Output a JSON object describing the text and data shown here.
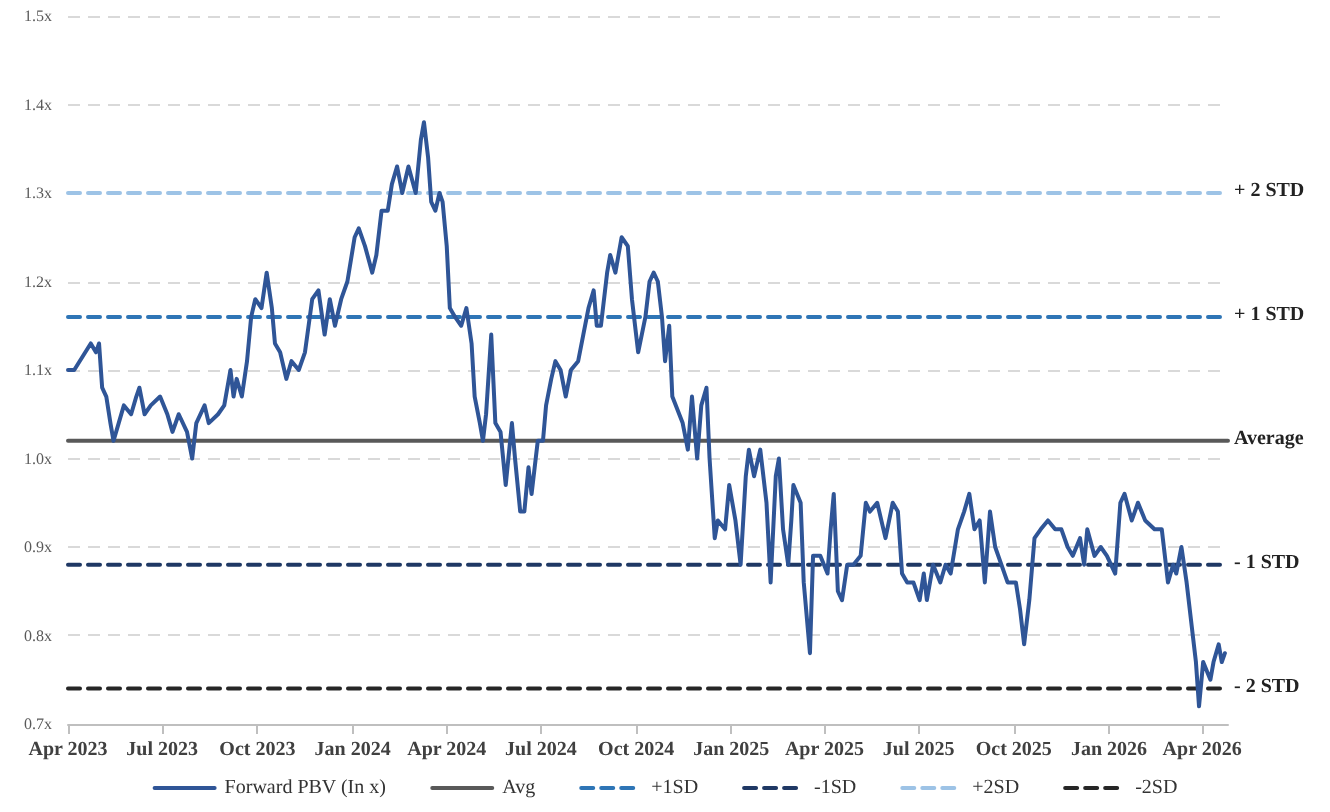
{
  "chart_data": {
    "type": "line",
    "xlim": [
      "2023-04-01",
      "2026-04-26"
    ],
    "xticks": [
      {
        "value": "2023-04-01",
        "label": "Apr 2023"
      },
      {
        "value": "2023-07-01",
        "label": "Jul 2023"
      },
      {
        "value": "2023-10-01",
        "label": "Oct 2023"
      },
      {
        "value": "2024-01-01",
        "label": "Jan 2024"
      },
      {
        "value": "2024-04-01",
        "label": "Apr 2024"
      },
      {
        "value": "2024-07-01",
        "label": "Jul 2024"
      },
      {
        "value": "2024-10-01",
        "label": "Oct 2024"
      },
      {
        "value": "2025-01-01",
        "label": "Jan 2025"
      },
      {
        "value": "2025-04-01",
        "label": "Apr 2025"
      },
      {
        "value": "2025-07-01",
        "label": "Jul 2025"
      },
      {
        "value": "2025-10-01",
        "label": "Oct 2025"
      },
      {
        "value": "2026-01-01",
        "label": "Jan 2026"
      },
      {
        "value": "2026-04-01",
        "label": "Apr 2026"
      }
    ],
    "ylim": [
      0.7,
      1.5
    ],
    "yticks": [
      {
        "value": 0.7,
        "label": "0.7x"
      },
      {
        "value": 0.8,
        "label": "0.8x"
      },
      {
        "value": 0.9,
        "label": "0.9x"
      },
      {
        "value": 1.0,
        "label": "1.0x"
      },
      {
        "value": 1.1,
        "label": "1.1x"
      },
      {
        "value": 1.2,
        "label": "1.2x"
      },
      {
        "value": 1.3,
        "label": "1.3x"
      },
      {
        "value": 1.4,
        "label": "1.4x"
      },
      {
        "value": 1.5,
        "label": "1.5x"
      }
    ],
    "grid": "y",
    "legend": "bottom",
    "marker": "none",
    "series": [
      {
        "name": "Forward PBV (In x)",
        "color": "#2f5597",
        "line_style": "solid",
        "x": [
          "2023-04-01",
          "2023-04-07",
          "2023-04-23",
          "2023-04-28",
          "2023-05-01",
          "2023-05-04",
          "2023-05-08",
          "2023-05-12",
          "2023-05-15",
          "2023-05-20",
          "2023-05-25",
          "2023-06-01",
          "2023-06-06",
          "2023-06-09",
          "2023-06-14",
          "2023-06-20",
          "2023-06-29",
          "2023-07-06",
          "2023-07-11",
          "2023-07-17",
          "2023-07-25",
          "2023-07-30",
          "2023-08-03",
          "2023-08-11",
          "2023-08-15",
          "2023-08-24",
          "2023-08-30",
          "2023-09-05",
          "2023-09-08",
          "2023-09-11",
          "2023-09-16",
          "2023-09-21",
          "2023-09-25",
          "2023-09-29",
          "2023-10-05",
          "2023-10-10",
          "2023-10-15",
          "2023-10-18",
          "2023-10-23",
          "2023-10-29",
          "2023-11-03",
          "2023-11-10",
          "2023-11-16",
          "2023-11-23",
          "2023-11-29",
          "2023-12-05",
          "2023-12-10",
          "2023-12-15",
          "2023-12-21",
          "2023-12-27",
          "2024-01-03",
          "2024-01-07",
          "2024-01-13",
          "2024-01-20",
          "2024-01-24",
          "2024-01-29",
          "2024-02-04",
          "2024-02-08",
          "2024-02-13",
          "2024-02-18",
          "2024-02-24",
          "2024-03-02",
          "2024-03-07",
          "2024-03-10",
          "2024-03-14",
          "2024-03-17",
          "2024-03-21",
          "2024-03-25",
          "2024-03-28",
          "2024-04-01",
          "2024-04-04",
          "2024-04-09",
          "2024-04-15",
          "2024-04-20",
          "2024-04-25",
          "2024-04-28",
          "2024-05-03",
          "2024-05-06",
          "2024-05-09",
          "2024-05-14",
          "2024-05-18",
          "2024-05-23",
          "2024-05-28",
          "2024-06-03",
          "2024-06-06",
          "2024-06-11",
          "2024-06-15",
          "2024-06-19",
          "2024-06-22",
          "2024-06-25",
          "2024-06-28",
          "2024-07-03",
          "2024-07-06",
          "2024-07-11",
          "2024-07-15",
          "2024-07-20",
          "2024-07-25",
          "2024-07-30",
          "2024-08-06",
          "2024-08-11",
          "2024-08-16",
          "2024-08-21",
          "2024-08-24",
          "2024-08-28",
          "2024-09-03",
          "2024-09-06",
          "2024-09-11",
          "2024-09-17",
          "2024-09-23",
          "2024-09-27",
          "2024-10-03",
          "2024-10-10",
          "2024-10-14",
          "2024-10-18",
          "2024-10-22",
          "2024-10-26",
          "2024-10-29",
          "2024-11-02",
          "2024-11-05",
          "2024-11-15",
          "2024-11-20",
          "2024-11-24",
          "2024-11-29",
          "2024-12-03",
          "2024-12-08",
          "2024-12-11",
          "2024-12-16",
          "2024-12-19",
          "2024-12-26",
          "2024-12-30",
          "2025-01-05",
          "2025-01-10",
          "2025-01-15",
          "2025-01-18",
          "2025-01-23",
          "2025-01-29",
          "2025-02-04",
          "2025-02-08",
          "2025-02-13",
          "2025-02-16",
          "2025-02-20",
          "2025-02-25",
          "2025-02-28",
          "2025-03-02",
          "2025-03-09",
          "2025-03-12",
          "2025-03-18",
          "2025-03-21",
          "2025-03-28",
          "2025-04-04",
          "2025-04-07",
          "2025-04-10",
          "2025-04-14",
          "2025-04-18",
          "2025-04-23",
          "2025-04-29",
          "2025-05-06",
          "2025-05-11",
          "2025-05-15",
          "2025-05-22",
          "2025-05-30",
          "2025-06-06",
          "2025-06-11",
          "2025-06-15",
          "2025-06-20",
          "2025-06-26",
          "2025-07-02",
          "2025-07-06",
          "2025-07-09",
          "2025-07-15",
          "2025-07-22",
          "2025-07-27",
          "2025-08-01",
          "2025-08-08",
          "2025-08-14",
          "2025-08-19",
          "2025-08-24",
          "2025-08-29",
          "2025-09-03",
          "2025-09-08",
          "2025-09-13",
          "2025-09-19",
          "2025-09-25",
          "2025-10-03",
          "2025-10-07",
          "2025-10-11",
          "2025-10-16",
          "2025-10-21",
          "2025-10-27",
          "2025-11-03",
          "2025-11-10",
          "2025-11-16",
          "2025-11-22",
          "2025-11-27",
          "2025-12-04",
          "2025-12-08",
          "2025-12-11",
          "2025-12-18",
          "2025-12-24",
          "2025-12-30",
          "2026-01-07",
          "2026-01-12",
          "2026-01-16",
          "2026-01-23",
          "2026-01-29",
          "2026-02-05",
          "2026-02-14",
          "2026-02-21",
          "2026-02-27",
          "2026-03-04",
          "2026-03-07",
          "2026-03-12",
          "2026-03-17",
          "2026-03-22",
          "2026-03-26",
          "2026-03-29",
          "2026-04-02",
          "2026-04-09",
          "2026-04-12",
          "2026-04-17",
          "2026-04-20",
          "2026-04-23"
        ],
        "values": [
          1.1,
          1.1,
          1.13,
          1.12,
          1.13,
          1.08,
          1.07,
          1.04,
          1.02,
          1.04,
          1.06,
          1.05,
          1.07,
          1.08,
          1.05,
          1.06,
          1.07,
          1.05,
          1.03,
          1.05,
          1.03,
          1.0,
          1.04,
          1.06,
          1.04,
          1.05,
          1.06,
          1.1,
          1.07,
          1.09,
          1.07,
          1.11,
          1.16,
          1.18,
          1.17,
          1.21,
          1.17,
          1.13,
          1.12,
          1.09,
          1.11,
          1.1,
          1.12,
          1.18,
          1.19,
          1.14,
          1.18,
          1.15,
          1.18,
          1.2,
          1.25,
          1.26,
          1.24,
          1.21,
          1.23,
          1.28,
          1.28,
          1.31,
          1.33,
          1.3,
          1.33,
          1.3,
          1.36,
          1.38,
          1.34,
          1.29,
          1.28,
          1.3,
          1.29,
          1.24,
          1.17,
          1.16,
          1.15,
          1.17,
          1.13,
          1.07,
          1.04,
          1.02,
          1.05,
          1.14,
          1.04,
          1.03,
          0.97,
          1.04,
          1.0,
          0.94,
          0.94,
          0.99,
          0.96,
          0.99,
          1.02,
          1.02,
          1.06,
          1.09,
          1.11,
          1.1,
          1.07,
          1.1,
          1.11,
          1.14,
          1.17,
          1.19,
          1.15,
          1.15,
          1.21,
          1.23,
          1.21,
          1.25,
          1.24,
          1.18,
          1.12,
          1.16,
          1.2,
          1.21,
          1.2,
          1.16,
          1.11,
          1.15,
          1.07,
          1.04,
          1.01,
          1.07,
          1.0,
          1.06,
          1.08,
          1.0,
          0.91,
          0.93,
          0.92,
          0.97,
          0.93,
          0.88,
          0.98,
          1.01,
          0.98,
          1.01,
          0.95,
          0.86,
          0.98,
          1.0,
          0.92,
          0.88,
          0.93,
          0.97,
          0.95,
          0.86,
          0.78,
          0.89,
          0.89,
          0.87,
          0.92,
          0.96,
          0.85,
          0.84,
          0.88,
          0.88,
          0.89,
          0.95,
          0.94,
          0.95,
          0.91,
          0.95,
          0.94,
          0.87,
          0.86,
          0.86,
          0.84,
          0.87,
          0.84,
          0.88,
          0.86,
          0.88,
          0.87,
          0.92,
          0.94,
          0.96,
          0.92,
          0.93,
          0.86,
          0.94,
          0.9,
          0.88,
          0.86,
          0.86,
          0.83,
          0.79,
          0.84,
          0.91,
          0.92,
          0.93,
          0.92,
          0.92,
          0.9,
          0.89,
          0.91,
          0.88,
          0.92,
          0.89,
          0.9,
          0.89,
          0.87,
          0.95,
          0.96,
          0.93,
          0.95,
          0.93,
          0.92,
          0.92,
          0.86,
          0.88,
          0.87,
          0.9,
          0.86,
          0.81,
          0.77,
          0.72,
          0.77,
          0.75,
          0.77,
          0.79,
          0.77,
          0.78
        ]
      },
      {
        "name": "Avg",
        "color": "#595959",
        "line_style": "solid",
        "x": [
          "2023-04-01",
          "2026-04-26"
        ],
        "values": [
          1.02,
          1.02
        ]
      },
      {
        "name": "+1SD",
        "color": "#2e75b6",
        "line_style": "dashed",
        "x": [
          "2023-04-01",
          "2026-04-26"
        ],
        "values": [
          1.16,
          1.16
        ]
      },
      {
        "name": "-1SD",
        "color": "#1f3864",
        "line_style": "dashed",
        "x": [
          "2023-04-01",
          "2026-04-26"
        ],
        "values": [
          0.88,
          0.88
        ]
      },
      {
        "name": "+2SD",
        "color": "#9dc3e6",
        "line_style": "dashed",
        "x": [
          "2023-04-01",
          "2026-04-26"
        ],
        "values": [
          1.3,
          1.3
        ]
      },
      {
        "name": "-2SD",
        "color": "#262626",
        "line_style": "dashed",
        "x": [
          "2023-04-01",
          "2026-04-26"
        ],
        "values": [
          0.74,
          0.74
        ]
      }
    ],
    "annotations": [
      {
        "text": "+ 2 STD",
        "x": "2026-04-26",
        "y": 1.3
      },
      {
        "text": "+ 1 STD",
        "x": "2026-04-26",
        "y": 1.16
      },
      {
        "text": "Average",
        "x": "2026-04-26",
        "y": 1.02
      },
      {
        "text": "- 1 STD",
        "x": "2026-04-26",
        "y": 0.88
      },
      {
        "text": "- 2 STD",
        "x": "2026-04-26",
        "y": 0.74
      }
    ]
  }
}
